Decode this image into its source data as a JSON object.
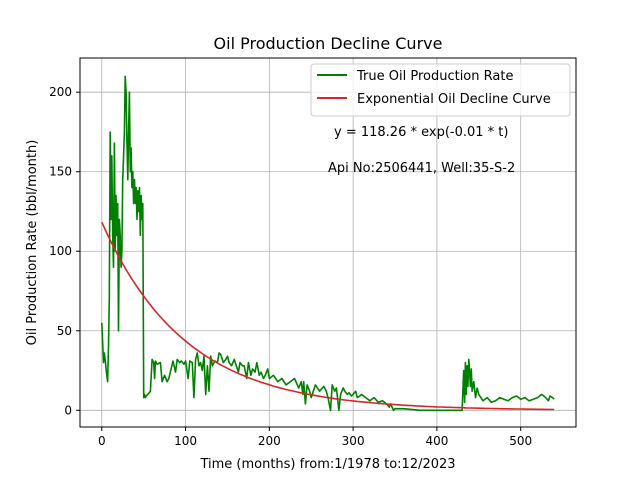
{
  "chart_data": {
    "type": "line",
    "title": "Oil Production Decline Curve",
    "xlabel": "Time (months) from:1/1978 to:12/2023",
    "ylabel": "Oil Production Rate (bbl/month)",
    "xlim": [
      -26,
      566
    ],
    "ylim": [
      -10.5,
      221.5
    ],
    "xticks": [
      0,
      100,
      200,
      300,
      400,
      500
    ],
    "yticks": [
      0,
      50,
      100,
      150,
      200
    ],
    "grid": true,
    "legend_placement": "top-right",
    "annotations": {
      "equation": "y = 118.26 * exp(-0.01 * t)",
      "well": "Api No:2506441, Well:35-S-2"
    },
    "series": [
      {
        "name": "True Oil Production Rate",
        "color": "#008000",
        "x": [
          0,
          2,
          3,
          4,
          6,
          7,
          8,
          9,
          10,
          11,
          12,
          13,
          14,
          15,
          16,
          17,
          18,
          19,
          20,
          21,
          22,
          23,
          24,
          25,
          26,
          27,
          28,
          29,
          30,
          31,
          32,
          33,
          34,
          35,
          36,
          37,
          38,
          39,
          40,
          41,
          42,
          43,
          44,
          45,
          46,
          47,
          48,
          49,
          50,
          51,
          52,
          53,
          55,
          58,
          60,
          62,
          63,
          64,
          66,
          70,
          72,
          75,
          78,
          80,
          85,
          88,
          90,
          93,
          95,
          98,
          100,
          103,
          105,
          108,
          110,
          112,
          114,
          116,
          118,
          120,
          122,
          124,
          126,
          128,
          130,
          132,
          135,
          138,
          140,
          142,
          145,
          148,
          150,
          152,
          155,
          158,
          160,
          163,
          165,
          168,
          170,
          173,
          175,
          178,
          180,
          183,
          185,
          188,
          190,
          193,
          195,
          198,
          200,
          205,
          210,
          215,
          220,
          225,
          230,
          235,
          238,
          240,
          241,
          243,
          245,
          248,
          250,
          255,
          260,
          265,
          268,
          270,
          273,
          275,
          278,
          280,
          283,
          285,
          288,
          290,
          293,
          295,
          298,
          300,
          303,
          305,
          308,
          310,
          315,
          320,
          325,
          330,
          335,
          340,
          343,
          345,
          348,
          350,
          360,
          380,
          400,
          420,
          430,
          432,
          433,
          434,
          435,
          436,
          437,
          438,
          439,
          440,
          441,
          442,
          444,
          446,
          448,
          450,
          455,
          460,
          465,
          470,
          475,
          480,
          485,
          490,
          495,
          500,
          505,
          510,
          515,
          520,
          525,
          530,
          533,
          535,
          538,
          540
        ],
        "y": [
          55,
          30,
          36,
          32,
          22,
          18,
          40,
          70,
          175,
          120,
          160,
          110,
          90,
          168,
          100,
          135,
          110,
          130,
          50,
          120,
          110,
          90,
          100,
          145,
          160,
          175,
          210,
          200,
          170,
          145,
          175,
          200,
          150,
          165,
          140,
          150,
          130,
          145,
          130,
          140,
          120,
          138,
          125,
          140,
          110,
          135,
          120,
          130,
          8,
          10,
          8,
          9,
          10,
          12,
          32,
          30,
          20,
          31,
          29,
          30,
          18,
          22,
          18,
          20,
          31,
          24,
          32,
          30,
          31,
          29,
          31,
          20,
          31,
          30,
          8,
          32,
          36,
          28,
          30,
          25,
          34,
          10,
          28,
          12,
          34,
          28,
          31,
          30,
          36,
          35,
          30,
          32,
          34,
          30,
          28,
          32,
          29,
          24,
          30,
          28,
          28,
          20,
          30,
          22,
          26,
          24,
          30,
          22,
          24,
          20,
          22,
          26,
          20,
          22,
          18,
          20,
          16,
          18,
          20,
          14,
          18,
          10,
          18,
          4,
          16,
          12,
          8,
          16,
          12,
          15,
          12,
          8,
          0,
          16,
          12,
          14,
          0,
          10,
          14,
          12,
          10,
          11,
          9,
          10,
          12,
          8,
          9,
          10,
          8,
          6,
          8,
          5,
          6,
          4,
          2,
          4,
          0,
          1,
          1,
          0,
          0,
          0,
          0,
          25,
          5,
          30,
          10,
          28,
          15,
          32,
          24,
          15,
          26,
          12,
          18,
          8,
          14,
          10,
          6,
          8,
          5,
          6,
          8,
          7,
          6,
          8,
          9,
          7,
          8,
          6,
          7,
          8,
          10,
          8,
          6,
          9,
          8,
          7
        ]
      },
      {
        "name": "Exponential Oil Decline Curve",
        "color": "#d62728",
        "equation": {
          "a": 118.26,
          "b": -0.01
        },
        "x_range": [
          0,
          540
        ]
      }
    ]
  }
}
